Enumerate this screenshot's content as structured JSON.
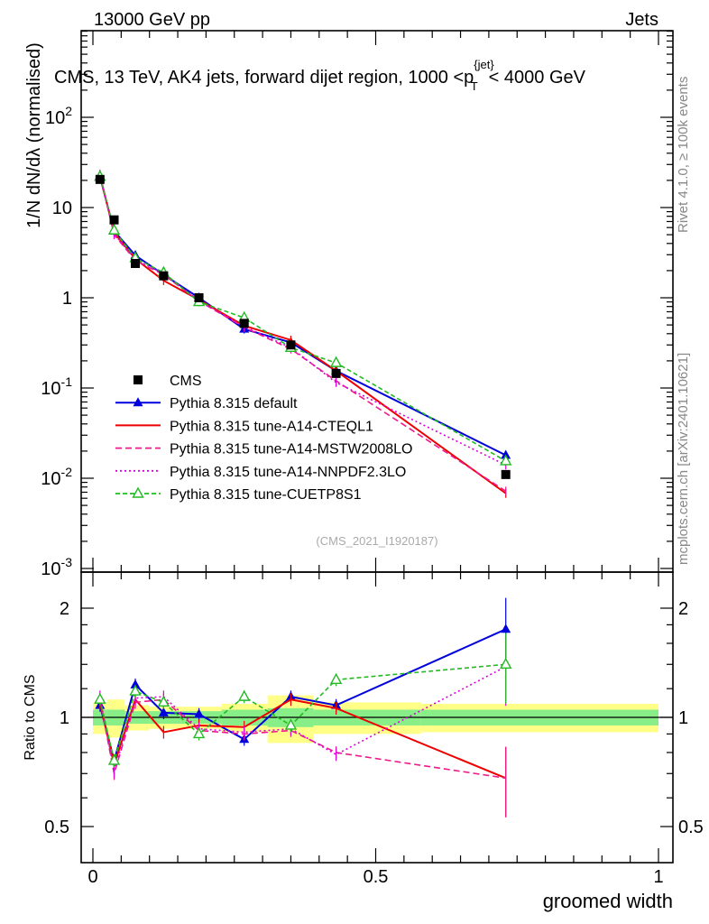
{
  "header": {
    "left": "13000 GeV pp",
    "right": "Jets"
  },
  "analysis_title": "CMS, 13 TeV, AK4 jets, forward dijet region, 1000 <p",
  "analysis_title_sup": "{jet}",
  "analysis_title_sub": "T",
  "analysis_title_end": "< 4000 GeV",
  "side_labels": {
    "rivet": "Rivet 4.1.0, ≥ 100k events",
    "mcplots": "mcplots.cern.ch [arXiv:2401.10621]"
  },
  "ref_label": "(CMS_2021_I1920187)",
  "ylabel_main": "1/N dN/dλ (normalised)",
  "ylabel_ratio": "Ratio to CMS",
  "xlabel": "groomed width",
  "chart_data": {
    "type": "scatter",
    "title": "CMS, 13 TeV, AK4 jets, forward dijet region, 1000 < pT(jet) < 4000 GeV",
    "xlabel": "groomed width",
    "ylabel": "(1/N) dN/dλ",
    "xlim": [
      0,
      1
    ],
    "ylim": [
      0.001,
      600
    ],
    "yscale": "log",
    "ratio_ylim": [
      0.42,
      2.35
    ],
    "x": [
      0.0125,
      0.0375,
      0.075,
      0.125,
      0.1875,
      0.2675,
      0.35,
      0.43,
      0.73
    ],
    "yticks": [
      "10^-3",
      "10^-2",
      "10^-1",
      "1",
      "10",
      "10^2"
    ],
    "xticks": [
      "0",
      "0.5",
      "1"
    ],
    "ratio_yticks": [
      "0.5",
      "1",
      "2"
    ],
    "data": {
      "name": "CMS",
      "values": [
        20.5,
        7.3,
        2.4,
        1.75,
        1.0,
        0.52,
        0.3,
        0.145,
        0.011
      ],
      "band_inner": [
        [
          0.95,
          1.05
        ],
        [
          0.95,
          1.05
        ],
        [
          0.96,
          1.04
        ],
        [
          0.96,
          1.04
        ],
        [
          0.96,
          1.04
        ],
        [
          0.95,
          1.05
        ],
        [
          0.94,
          1.06
        ],
        [
          0.95,
          1.05
        ],
        [
          0.95,
          1.05
        ]
      ],
      "band_outer": [
        [
          0.9,
          1.1
        ],
        [
          0.88,
          1.12
        ],
        [
          0.92,
          1.08
        ],
        [
          0.93,
          1.07
        ],
        [
          0.93,
          1.07
        ],
        [
          0.91,
          1.09
        ],
        [
          0.85,
          1.15
        ],
        [
          0.9,
          1.1
        ],
        [
          0.91,
          1.09
        ]
      ]
    },
    "legend": [
      "CMS",
      "Pythia 8.315 default",
      "Pythia 8.315 tune-A14-CTEQL1",
      "Pythia 8.315 tune-A14-MSTW2008LO",
      "Pythia 8.315 tune-A14-NNPDF2.3LO",
      "Pythia 8.315 tune-CUETP8S1"
    ],
    "series": [
      {
        "name": "Pythia 8.315 default",
        "color": "#0000dd",
        "dash": "",
        "marker": "triangle-filled",
        "values": [
          22.0,
          5.5,
          2.95,
          1.8,
          1.0,
          0.45,
          0.32,
          0.155,
          0.018
        ],
        "ratio": [
          1.08,
          0.76,
          1.23,
          1.03,
          1.02,
          0.87,
          1.14,
          1.08,
          1.75
        ]
      },
      {
        "name": "Pythia 8.315 tune-A14-CTEQL1",
        "color": "#ee0000",
        "dash": "",
        "marker": "none",
        "values": [
          22.5,
          5.3,
          2.7,
          1.55,
          0.95,
          0.49,
          0.34,
          0.155,
          0.0068
        ],
        "ratio": [
          1.1,
          0.74,
          1.12,
          0.91,
          0.95,
          0.94,
          1.12,
          1.06,
          0.68
        ]
      },
      {
        "name": "Pythia 8.315 tune-A14-MSTW2008LO",
        "color": "#ee1a8c",
        "dash": "7,4",
        "marker": "none",
        "values": [
          23.0,
          5.0,
          2.6,
          1.8,
          0.92,
          0.47,
          0.27,
          0.12,
          0.0072
        ],
        "ratio": [
          1.12,
          0.7,
          1.1,
          1.12,
          0.92,
          0.9,
          0.92,
          0.8,
          0.68
        ]
      },
      {
        "name": "Pythia 8.315 tune-A14-NNPDF2.3LO",
        "color": "#dd00dd",
        "dash": "2,3",
        "marker": "none",
        "values": [
          23.5,
          5.1,
          2.65,
          1.85,
          0.93,
          0.48,
          0.28,
          0.115,
          0.014
        ],
        "ratio": [
          1.14,
          0.71,
          1.13,
          1.14,
          0.93,
          0.91,
          0.93,
          0.79,
          1.38
        ]
      },
      {
        "name": "Pythia 8.315 tune-CUETP8S1",
        "color": "#22bb22",
        "dash": "5,3",
        "marker": "triangle-open",
        "values": [
          22.0,
          5.6,
          2.75,
          1.9,
          0.9,
          0.6,
          0.28,
          0.19,
          0.0155
        ],
        "ratio": [
          1.12,
          0.76,
          1.18,
          1.1,
          0.9,
          1.14,
          0.95,
          1.27,
          1.4
        ]
      }
    ]
  }
}
